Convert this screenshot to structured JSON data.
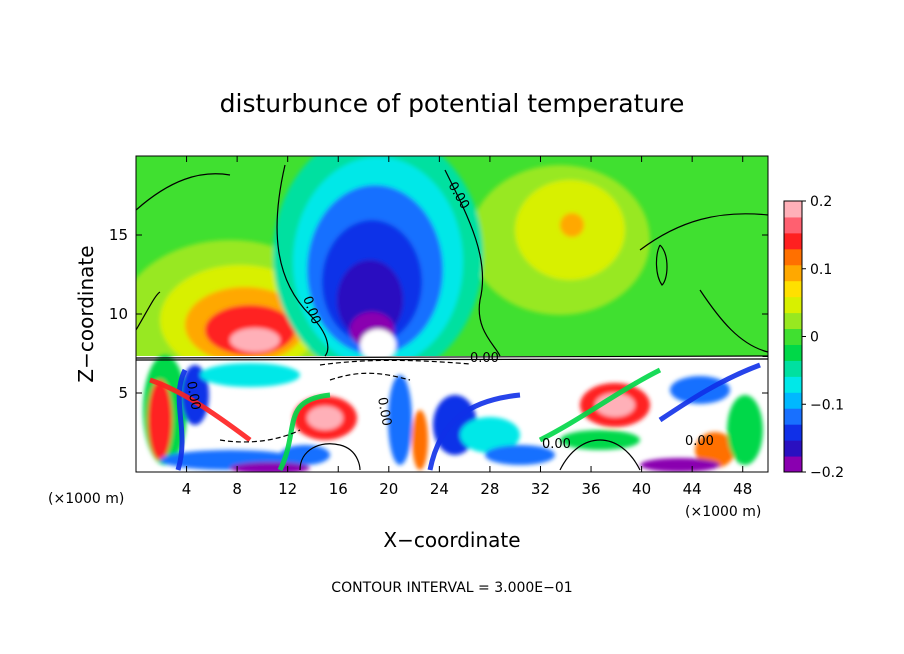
{
  "chart_data": {
    "type": "heatmap",
    "title": "disturbunce of potential temperature",
    "xlabel": "X−coordinate",
    "ylabel": "Z−coordinate",
    "x_unit_left": "(×1000 m)",
    "x_unit_right": "(×1000 m)",
    "footer": "CONTOUR INTERVAL = 3.000E−01",
    "xlim": [
      0,
      50
    ],
    "ylim": [
      0,
      20
    ],
    "x_ticks": [
      4,
      8,
      12,
      16,
      20,
      24,
      28,
      32,
      36,
      40,
      44,
      48
    ],
    "y_ticks": [
      5,
      10,
      15
    ],
    "colorbar": {
      "range": [
        -0.2,
        0.2
      ],
      "tick_values": [
        0.2,
        0.1,
        0,
        -0.1,
        -0.2
      ],
      "tick_labels": [
        "0.2",
        "0.1",
        "0",
        "−0.1",
        "−0.2"
      ],
      "colors": [
        "#8a00b0",
        "#2a10c0",
        "#1030e8",
        "#1870ff",
        "#00b8ff",
        "#00e8e8",
        "#00e0a0",
        "#00d848",
        "#40e030",
        "#98e820",
        "#d8f000",
        "#ffe000",
        "#ffa800",
        "#ff7000",
        "#ff2020",
        "#ff6070",
        "#ffb0b8"
      ]
    },
    "contour_labels": [
      "0.00",
      "0.00",
      "0.00",
      "0.00",
      "0.00",
      "0.00",
      "0.00"
    ],
    "regions": [
      {
        "desc": "upper background",
        "value": -0.02
      },
      {
        "desc": "negative plume",
        "x": 19,
        "z": 14,
        "value": -0.2
      },
      {
        "desc": "warm anomaly left",
        "x": 9.5,
        "z": 10,
        "value": 0.18
      },
      {
        "desc": "warm anomaly right",
        "x": 35,
        "z": 15,
        "value": 0.08
      },
      {
        "desc": "lower turbulent layer",
        "z_range": [
          0,
          7.3
        ],
        "value_range": [
          -0.2,
          0.2
        ]
      }
    ],
    "grid": false,
    "legend": "colorbar-right"
  }
}
